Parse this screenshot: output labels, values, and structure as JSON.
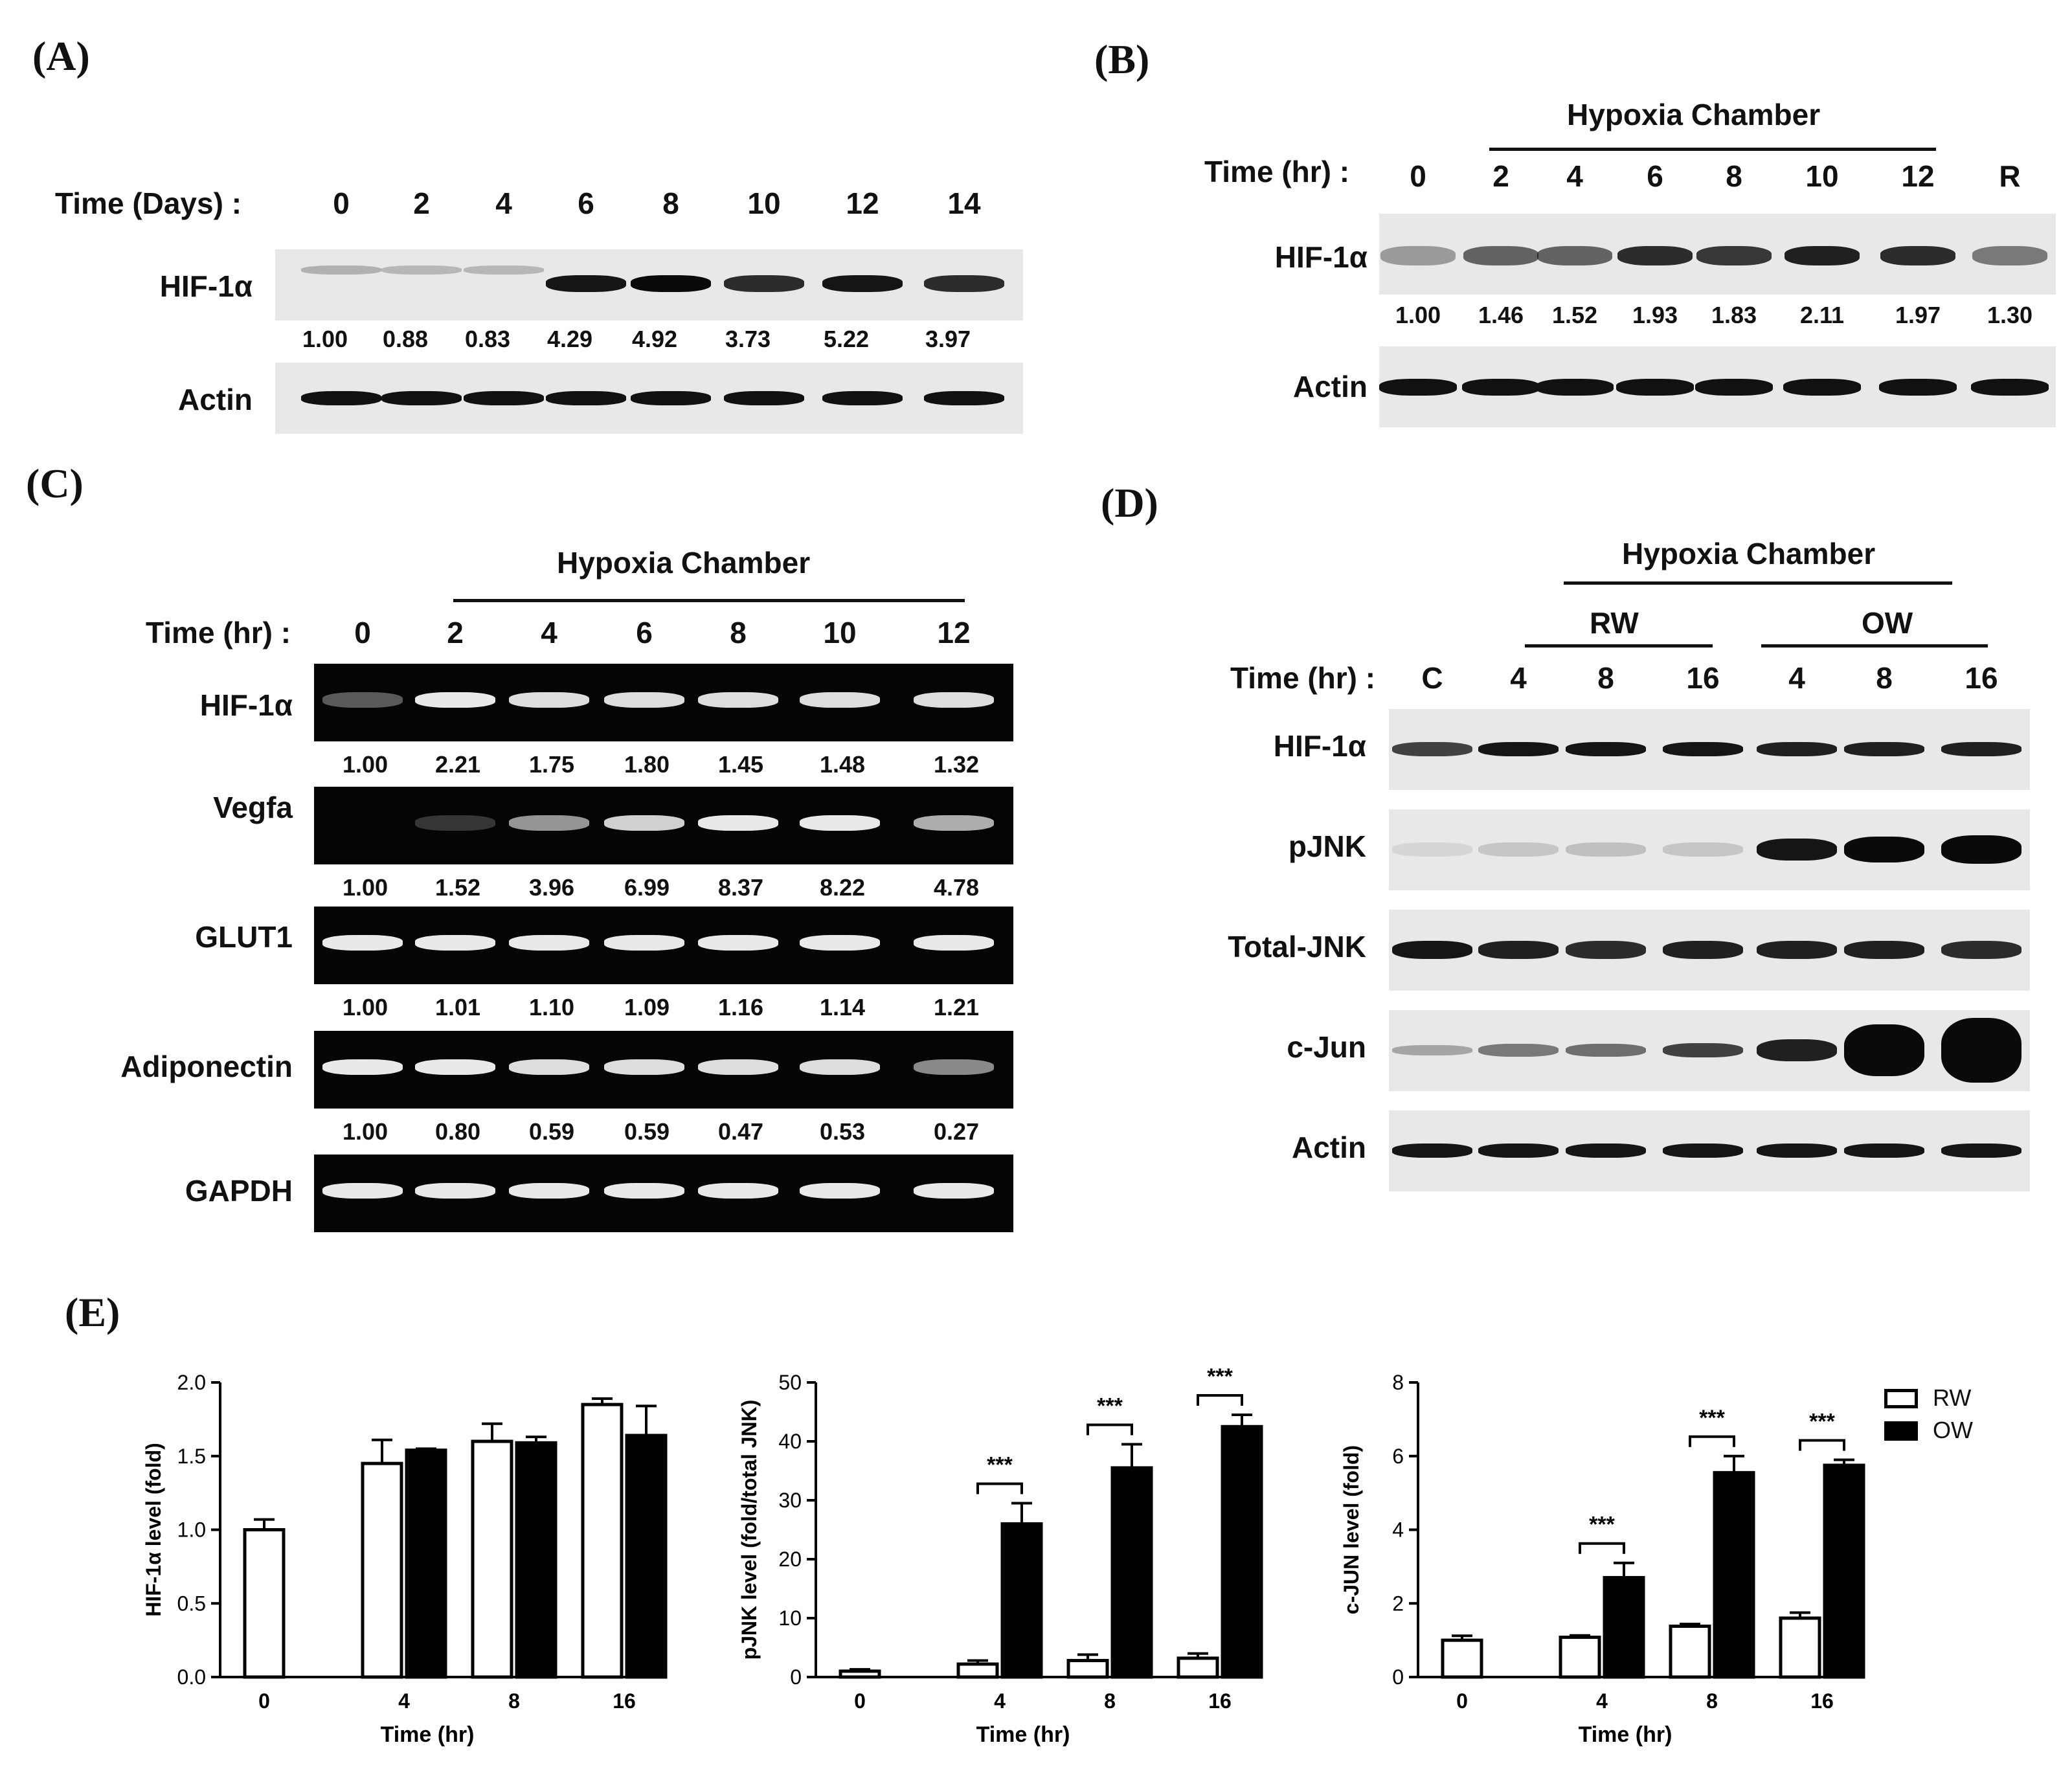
{
  "panel_labels": {
    "A": "(A)",
    "B": "(B)",
    "C": "(C)",
    "D": "(D)",
    "E": "(E)"
  },
  "panelA": {
    "time_label": "Time (Days) :",
    "times": [
      "0",
      "2",
      "4",
      "6",
      "8",
      "10",
      "12",
      "14"
    ],
    "hif_label": "HIF-1α",
    "actin_label": "Actin",
    "hif_quant": [
      "1.00",
      "0.88",
      "0.83",
      "4.29",
      "4.92",
      "3.73",
      "5.22",
      "3.97"
    ]
  },
  "panelB": {
    "condition": "Hypoxia Chamber",
    "time_label": "Time (hr) :",
    "times": [
      "0",
      "2",
      "4",
      "6",
      "8",
      "10",
      "12",
      "R"
    ],
    "hif_label": "HIF-1α",
    "actin_label": "Actin",
    "hif_quant": [
      "1.00",
      "1.46",
      "1.52",
      "1.93",
      "1.83",
      "2.11",
      "1.97",
      "1.30"
    ]
  },
  "panelC": {
    "condition": "Hypoxia Chamber",
    "time_label": "Time (hr) :",
    "times": [
      "0",
      "2",
      "4",
      "6",
      "8",
      "10",
      "12"
    ],
    "rows": [
      {
        "label": "HIF-1α",
        "quant": [
          "1.00",
          "2.21",
          "1.75",
          "1.80",
          "1.45",
          "1.48",
          "1.32"
        ]
      },
      {
        "label": "Vegfa",
        "quant": [
          "1.00",
          "1.52",
          "3.96",
          "6.99",
          "8.37",
          "8.22",
          "4.78"
        ]
      },
      {
        "label": "GLUT1",
        "quant": [
          "1.00",
          "1.01",
          "1.10",
          "1.09",
          "1.16",
          "1.14",
          "1.21"
        ]
      },
      {
        "label": "Adiponectin",
        "quant": [
          "1.00",
          "0.80",
          "0.59",
          "0.59",
          "0.47",
          "0.53",
          "0.27"
        ]
      },
      {
        "label": "GAPDH",
        "quant": []
      }
    ]
  },
  "panelD": {
    "condition": "Hypoxia Chamber",
    "group1": "RW",
    "group2": "OW",
    "time_label": "Time (hr) :",
    "times": [
      "C",
      "4",
      "8",
      "16",
      "4",
      "8",
      "16"
    ],
    "rows": [
      "HIF-1α",
      "pJNK",
      "Total-JNK",
      "c-Jun",
      "Actin"
    ]
  },
  "panelE": {
    "legend": [
      "RW",
      "OW"
    ],
    "significance": "***",
    "charts": [
      {
        "type": "bar",
        "ylabel": "HIF-1α level (fold)",
        "xlabel": "Time (hr)",
        "categories": [
          "0",
          "4",
          "8",
          "16"
        ],
        "ylim": [
          0,
          2.0
        ],
        "yticks": [
          "0.0",
          "0.5",
          "1.0",
          "1.5",
          "2.0"
        ],
        "series": [
          {
            "name": "RW",
            "values": [
              1.0,
              1.45,
              1.6,
              1.85
            ],
            "errors": [
              0.07,
              0.16,
              0.12,
              0.04
            ]
          },
          {
            "name": "OW",
            "values": [
              null,
              1.54,
              1.59,
              1.64
            ],
            "errors": [
              null,
              0.01,
              0.04,
              0.2
            ]
          }
        ],
        "significant": []
      },
      {
        "type": "bar",
        "ylabel": "pJNK level (fold/total JNK)",
        "xlabel": "Time (hr)",
        "categories": [
          "0",
          "4",
          "8",
          "16"
        ],
        "ylim": [
          0,
          50
        ],
        "yticks": [
          "0",
          "10",
          "20",
          "30",
          "40",
          "50"
        ],
        "series": [
          {
            "name": "RW",
            "values": [
              1.0,
              2.2,
              2.8,
              3.2
            ],
            "errors": [
              0.3,
              0.6,
              1.0,
              0.8
            ]
          },
          {
            "name": "OW",
            "values": [
              null,
              26.0,
              35.5,
              42.5
            ],
            "errors": [
              null,
              3.5,
              4.0,
              2.0
            ]
          }
        ],
        "significant": [
          "4",
          "8",
          "16"
        ]
      },
      {
        "type": "bar",
        "ylabel": "c-JUN level (fold)",
        "xlabel": "Time (hr)",
        "categories": [
          "0",
          "4",
          "8",
          "16"
        ],
        "ylim": [
          0,
          8
        ],
        "yticks": [
          "0",
          "2",
          "4",
          "6",
          "8"
        ],
        "series": [
          {
            "name": "RW",
            "values": [
              1.0,
              1.08,
              1.38,
              1.6
            ],
            "errors": [
              0.12,
              0.05,
              0.06,
              0.15
            ]
          },
          {
            "name": "OW",
            "values": [
              null,
              2.7,
              5.55,
              5.75
            ],
            "errors": [
              null,
              0.4,
              0.45,
              0.15
            ]
          }
        ],
        "significant": [
          "4",
          "8",
          "16"
        ]
      }
    ]
  }
}
